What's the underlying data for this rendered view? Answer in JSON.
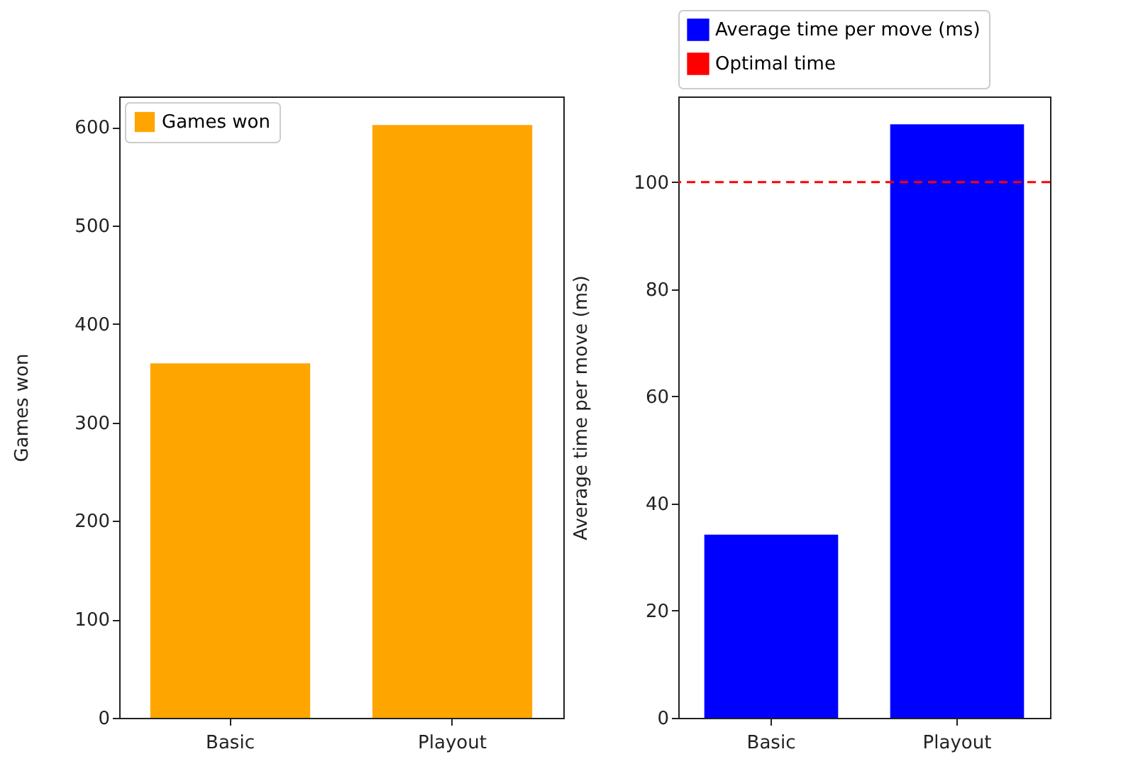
{
  "chart_data": [
    {
      "type": "bar",
      "categories": [
        "Basic",
        "Playout"
      ],
      "ylabel": "Games won",
      "ylim": [
        0,
        631
      ],
      "yticks": [
        0,
        100,
        200,
        300,
        400,
        500,
        600
      ],
      "series": [
        {
          "name": "Games won",
          "color": "#ffa500",
          "values": [
            360,
            602
          ]
        }
      ],
      "legend": "top left"
    },
    {
      "type": "bar",
      "categories": [
        "Basic",
        "Playout"
      ],
      "ylabel": "Average time per move (ms)",
      "ylim": [
        0,
        116
      ],
      "yticks": [
        0,
        20,
        40,
        60,
        80,
        100
      ],
      "series": [
        {
          "name": "Average time per move (ms)",
          "color": "#0000ff",
          "values": [
            34.2,
            110.8
          ]
        }
      ],
      "ref_lines": [
        {
          "axis": "y",
          "value": 100,
          "label": "Optimal time",
          "color": "#ff0000",
          "line_style": "dashed"
        }
      ],
      "legend": "top"
    }
  ]
}
